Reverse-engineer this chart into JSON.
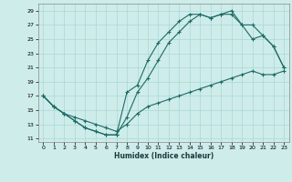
{
  "title": "",
  "xlabel": "Humidex (Indice chaleur)",
  "bg_color": "#ceecea",
  "grid_color": "#a8d8d4",
  "line_color": "#1e6b65",
  "xlim": [
    -0.5,
    23.5
  ],
  "ylim": [
    10.5,
    30.0
  ],
  "xticks": [
    0,
    1,
    2,
    3,
    4,
    5,
    6,
    7,
    8,
    9,
    10,
    11,
    12,
    13,
    14,
    15,
    16,
    17,
    18,
    19,
    20,
    21,
    22,
    23
  ],
  "yticks": [
    11,
    13,
    15,
    17,
    19,
    21,
    23,
    25,
    27,
    29
  ],
  "line1_x": [
    0,
    1,
    2,
    3,
    4,
    5,
    6,
    7,
    8,
    9,
    10,
    11,
    12,
    13,
    14,
    15,
    16,
    17,
    18,
    19,
    20,
    21,
    22,
    23
  ],
  "line1_y": [
    17.0,
    15.5,
    14.5,
    13.5,
    12.5,
    12.0,
    11.5,
    11.5,
    17.5,
    18.5,
    22.0,
    24.5,
    26.0,
    27.5,
    28.5,
    28.5,
    28.0,
    28.5,
    29.0,
    27.0,
    27.0,
    25.5,
    24.0,
    21.0
  ],
  "line2_x": [
    0,
    1,
    2,
    3,
    4,
    5,
    6,
    7,
    8,
    9,
    10,
    11,
    12,
    13,
    14,
    15,
    16,
    17,
    18,
    19,
    20,
    21,
    22,
    23
  ],
  "line2_y": [
    17.0,
    15.5,
    14.5,
    13.5,
    12.5,
    12.0,
    11.5,
    11.5,
    14.0,
    17.5,
    19.5,
    22.0,
    24.5,
    26.0,
    27.5,
    28.5,
    28.0,
    28.5,
    28.5,
    27.0,
    25.0,
    25.5,
    24.0,
    21.0
  ],
  "line3_x": [
    0,
    1,
    2,
    3,
    4,
    5,
    6,
    7,
    8,
    9,
    10,
    11,
    12,
    13,
    14,
    15,
    16,
    17,
    18,
    19,
    20,
    21,
    22,
    23
  ],
  "line3_y": [
    17.0,
    15.5,
    14.5,
    14.0,
    13.5,
    13.0,
    12.5,
    12.0,
    13.0,
    14.5,
    15.5,
    16.0,
    16.5,
    17.0,
    17.5,
    18.0,
    18.5,
    19.0,
    19.5,
    20.0,
    20.5,
    20.0,
    20.0,
    20.5
  ]
}
